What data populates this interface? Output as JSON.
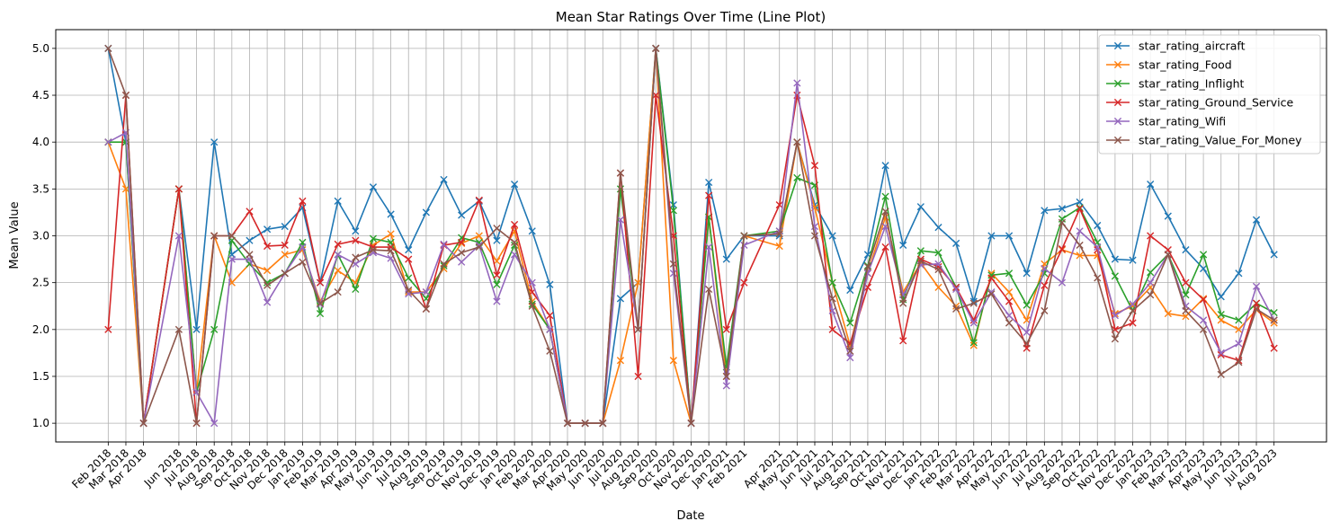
{
  "chart_data": {
    "type": "line",
    "title": "Mean Star Ratings Over Time (Line Plot)",
    "xlabel": "Date",
    "ylabel": "Mean Value",
    "ylim": [
      0.8,
      5.2
    ],
    "yticks": [
      "1.0",
      "1.5",
      "2.0",
      "2.5",
      "3.0",
      "3.5",
      "4.0",
      "4.5",
      "5.0"
    ],
    "grid": true,
    "legend_position": "top-right",
    "marker": "x",
    "x": [
      "2018-02",
      "2018-03",
      "2018-04",
      "2018-06",
      "2018-07",
      "2018-08",
      "2018-09",
      "2018-10",
      "2018-11",
      "2018-12",
      "2019-01",
      "2019-02",
      "2019-03",
      "2019-04",
      "2019-05",
      "2019-06",
      "2019-07",
      "2019-08",
      "2019-09",
      "2019-10",
      "2019-11",
      "2019-12",
      "2020-01",
      "2020-02",
      "2020-03",
      "2020-04",
      "2020-05",
      "2020-06",
      "2020-07",
      "2020-08",
      "2020-09",
      "2020-10",
      "2020-11",
      "2020-12",
      "2021-01",
      "2021-02",
      "2021-04",
      "2021-05",
      "2021-06",
      "2021-07",
      "2021-08",
      "2021-09",
      "2021-10",
      "2021-11",
      "2021-12",
      "2022-01",
      "2022-02",
      "2022-03",
      "2022-04",
      "2022-05",
      "2022-06",
      "2022-07",
      "2022-08",
      "2022-09",
      "2022-10",
      "2022-11",
      "2022-12",
      "2023-01",
      "2023-02",
      "2023-03",
      "2023-04",
      "2023-05",
      "2023-06",
      "2023-07",
      "2023-08"
    ],
    "x_tick_labels": [
      "Feb 2018",
      "Mar 2018",
      "Apr 2018",
      "Jun 2018",
      "Jul 2018",
      "Aug 2018",
      "Sep 2018",
      "Oct 2018",
      "Nov 2018",
      "Dec 2018",
      "Jan 2019",
      "Feb 2019",
      "Mar 2019",
      "Apr 2019",
      "May 2019",
      "Jun 2019",
      "Jul 2019",
      "Aug 2019",
      "Sep 2019",
      "Oct 2019",
      "Nov 2019",
      "Dec 2019",
      "Jan 2020",
      "Feb 2020",
      "Mar 2020",
      "Apr 2020",
      "May 2020",
      "Jun 2020",
      "Jul 2020",
      "Aug 2020",
      "Sep 2020",
      "Oct 2020",
      "Nov 2020",
      "Dec 2020",
      "Jan 2021",
      "Feb 2021",
      "Apr 2021",
      "May 2021",
      "Jun 2021",
      "Jul 2021",
      "Aug 2021",
      "Sep 2021",
      "Oct 2021",
      "Nov 2021",
      "Dec 2021",
      "Jan 2022",
      "Feb 2022",
      "Mar 2022",
      "Apr 2022",
      "May 2022",
      "Jun 2022",
      "Jul 2022",
      "Aug 2022",
      "Sep 2022",
      "Oct 2022",
      "Nov 2022",
      "Dec 2022",
      "Jan 2023",
      "Feb 2023",
      "Mar 2023",
      "Apr 2023",
      "May 2023",
      "Jun 2023",
      "Jul 2023",
      "Aug 2023"
    ],
    "series": [
      {
        "name": "star_rating_aircraft",
        "color": "#1f77b4",
        "values": [
          5.0,
          4.0,
          1.0,
          3.5,
          2.0,
          4.0,
          2.8,
          2.95,
          3.07,
          3.1,
          3.3,
          2.5,
          3.37,
          3.05,
          3.52,
          3.23,
          2.85,
          3.25,
          3.6,
          3.22,
          3.37,
          2.95,
          3.55,
          3.05,
          2.48,
          1.0,
          1.0,
          1.0,
          2.33,
          2.5,
          5.0,
          3.33,
          1.0,
          3.57,
          2.75,
          3.0,
          3.0,
          4.0,
          3.33,
          3.0,
          2.42,
          2.8,
          3.75,
          2.9,
          3.31,
          3.09,
          2.92,
          2.3,
          3.0,
          3.0,
          2.6,
          3.27,
          3.29,
          3.36,
          3.11,
          2.75,
          2.74,
          3.55,
          3.21,
          2.85,
          2.65,
          2.35,
          2.6,
          3.17,
          2.8
        ]
      },
      {
        "name": "star_rating_Food",
        "color": "#ff7f0e",
        "values": [
          4.0,
          3.5,
          1.0,
          3.5,
          1.33,
          3.0,
          2.5,
          2.7,
          2.63,
          2.8,
          2.85,
          2.3,
          2.63,
          2.5,
          2.9,
          3.02,
          2.4,
          2.4,
          2.65,
          2.92,
          3.0,
          2.73,
          3.05,
          2.3,
          2.0,
          1.0,
          1.0,
          1.0,
          1.67,
          2.5,
          5.0,
          1.67,
          1.0,
          3.2,
          1.5,
          3.0,
          2.89,
          4.0,
          3.3,
          2.5,
          1.83,
          2.6,
          3.2,
          2.4,
          2.71,
          2.45,
          2.25,
          1.83,
          2.6,
          2.4,
          2.1,
          2.7,
          2.85,
          2.79,
          2.79,
          2.17,
          2.25,
          2.45,
          2.17,
          2.14,
          2.33,
          2.1,
          2.0,
          2.21,
          2.07
        ]
      },
      {
        "name": "star_rating_Inflight",
        "color": "#2ca02c",
        "values": [
          4.0,
          4.0,
          1.0,
          3.5,
          1.33,
          2.0,
          2.95,
          2.7,
          2.5,
          2.6,
          2.93,
          2.17,
          2.8,
          2.43,
          2.97,
          2.93,
          2.55,
          2.33,
          2.68,
          2.98,
          2.93,
          2.48,
          2.9,
          2.27,
          2.0,
          1.0,
          1.0,
          1.0,
          3.5,
          2.0,
          5.0,
          3.27,
          1.0,
          3.2,
          1.6,
          3.0,
          3.05,
          3.62,
          3.54,
          2.5,
          2.07,
          2.68,
          3.42,
          2.32,
          2.84,
          2.82,
          2.45,
          1.86,
          2.58,
          2.6,
          2.26,
          2.6,
          3.18,
          3.3,
          2.93,
          2.57,
          2.2,
          2.61,
          2.8,
          2.37,
          2.8,
          2.16,
          2.1,
          2.28,
          2.18
        ]
      },
      {
        "name": "star_rating_Ground_Service",
        "color": "#d62728",
        "values": [
          2.0,
          4.5,
          1.0,
          3.5,
          1.0,
          3.0,
          3.0,
          3.26,
          2.89,
          2.9,
          3.37,
          2.5,
          2.91,
          2.95,
          2.88,
          2.88,
          2.75,
          2.22,
          2.9,
          2.93,
          3.38,
          2.58,
          3.12,
          2.4,
          2.15,
          1.0,
          1.0,
          1.0,
          3.67,
          1.5,
          4.5,
          3.0,
          1.0,
          3.43,
          2.0,
          2.5,
          3.33,
          4.5,
          3.75,
          2.0,
          1.85,
          2.45,
          2.88,
          1.88,
          2.75,
          2.67,
          2.45,
          2.1,
          2.55,
          2.3,
          1.8,
          2.47,
          2.86,
          3.29,
          2.85,
          2.0,
          2.07,
          3.0,
          2.85,
          2.5,
          2.32,
          1.73,
          1.67,
          2.28,
          1.8
        ]
      },
      {
        "name": "star_rating_Wifi",
        "color": "#9467bd",
        "values": [
          4.0,
          4.1,
          1.0,
          3.0,
          1.33,
          1.0,
          2.75,
          2.75,
          2.29,
          2.6,
          2.88,
          2.27,
          2.8,
          2.7,
          2.82,
          2.76,
          2.38,
          2.4,
          2.91,
          2.72,
          2.9,
          2.3,
          2.8,
          2.5,
          2.0,
          1.0,
          1.0,
          1.0,
          3.17,
          2.0,
          5.0,
          2.6,
          1.0,
          2.88,
          1.4,
          2.9,
          3.05,
          4.63,
          3.1,
          2.2,
          1.7,
          2.6,
          3.1,
          2.37,
          2.69,
          2.7,
          2.43,
          2.07,
          2.4,
          2.15,
          1.97,
          2.65,
          2.5,
          3.05,
          2.88,
          2.15,
          2.27,
          2.5,
          2.8,
          2.25,
          2.1,
          1.75,
          1.85,
          2.46,
          2.1
        ]
      },
      {
        "name": "star_rating_Value_For_Money",
        "color": "#8c564b",
        "values": [
          5.0,
          4.5,
          1.0,
          2.0,
          1.0,
          3.0,
          3.0,
          2.8,
          2.47,
          2.6,
          2.72,
          2.28,
          2.4,
          2.77,
          2.85,
          2.84,
          2.42,
          2.22,
          2.7,
          2.82,
          2.88,
          3.08,
          2.93,
          2.25,
          1.77,
          1.0,
          1.0,
          1.0,
          3.67,
          2.0,
          5.0,
          2.7,
          1.0,
          2.43,
          1.5,
          3.0,
          3.02,
          4.0,
          3.0,
          2.33,
          1.77,
          2.67,
          3.26,
          2.28,
          2.73,
          2.64,
          2.22,
          2.28,
          2.38,
          2.07,
          1.85,
          2.2,
          3.14,
          2.9,
          2.55,
          1.9,
          2.2,
          2.37,
          2.8,
          2.2,
          2.0,
          1.52,
          1.65,
          2.22,
          2.1
        ]
      }
    ]
  }
}
